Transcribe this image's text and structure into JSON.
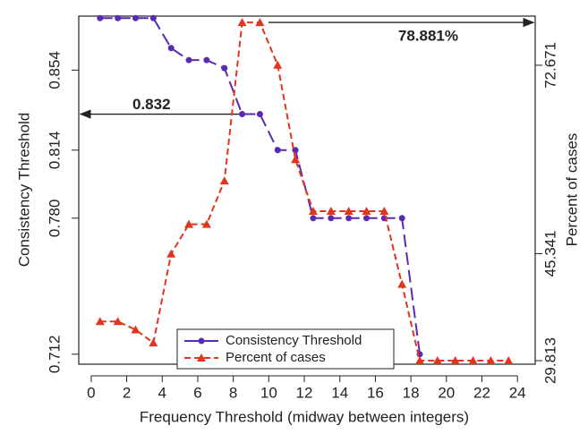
{
  "chart_data": {
    "type": "line",
    "x_label": "Frequency Threshold (midway between integers)",
    "y_label": "Consistency Threshold",
    "y2_label": "Percent of cases",
    "x": [
      0.5,
      1.5,
      2.5,
      3.5,
      4.5,
      5.5,
      6.5,
      7.5,
      8.5,
      9.5,
      10.5,
      11.5,
      12.5,
      13.5,
      14.5,
      15.5,
      16.5,
      17.5,
      18.5,
      19.5,
      20.5,
      21.5,
      22.5,
      23.5
    ],
    "series": [
      {
        "name": "Consistency Threshold",
        "color": "#5a2bb0",
        "marker": "circle",
        "values": [
          0.88,
          0.88,
          0.88,
          0.88,
          0.865,
          0.859,
          0.859,
          0.855,
          0.832,
          0.832,
          0.814,
          0.814,
          0.78,
          0.78,
          0.78,
          0.78,
          0.78,
          0.78,
          0.712,
          null,
          null,
          null,
          null,
          null
        ]
      },
      {
        "name": "Percent of cases",
        "color": "#e0351e",
        "marker": "triangle",
        "axis": "y2",
        "values": [
          35.5,
          35.5,
          34.3,
          32.4,
          45.3,
          49.6,
          49.6,
          55.9,
          78.881,
          78.881,
          72.7,
          59.0,
          51.5,
          51.5,
          51.5,
          51.5,
          51.5,
          40.9,
          29.813,
          29.813,
          29.813,
          29.813,
          29.813,
          29.813
        ]
      }
    ],
    "xlim": [
      -0.7,
      25
    ],
    "xticks": [
      0,
      2,
      4,
      6,
      8,
      10,
      12,
      14,
      16,
      18,
      20,
      22,
      24
    ],
    "ylim": [
      0.707,
      0.881
    ],
    "yticks": [
      0.712,
      {
        "value": 0.78,
        "label": "0.780"
      },
      0.814,
      0.854
    ],
    "y2lim": [
      29.3,
      79.8
    ],
    "y2ticks": [
      29.813,
      45.341,
      72.671
    ],
    "annotations": [
      {
        "text": "0.832",
        "value": 0.832,
        "axis": "y"
      },
      {
        "text": "78.881%",
        "value": 78.881,
        "axis": "y2"
      }
    ],
    "legend": "bottom-center"
  }
}
